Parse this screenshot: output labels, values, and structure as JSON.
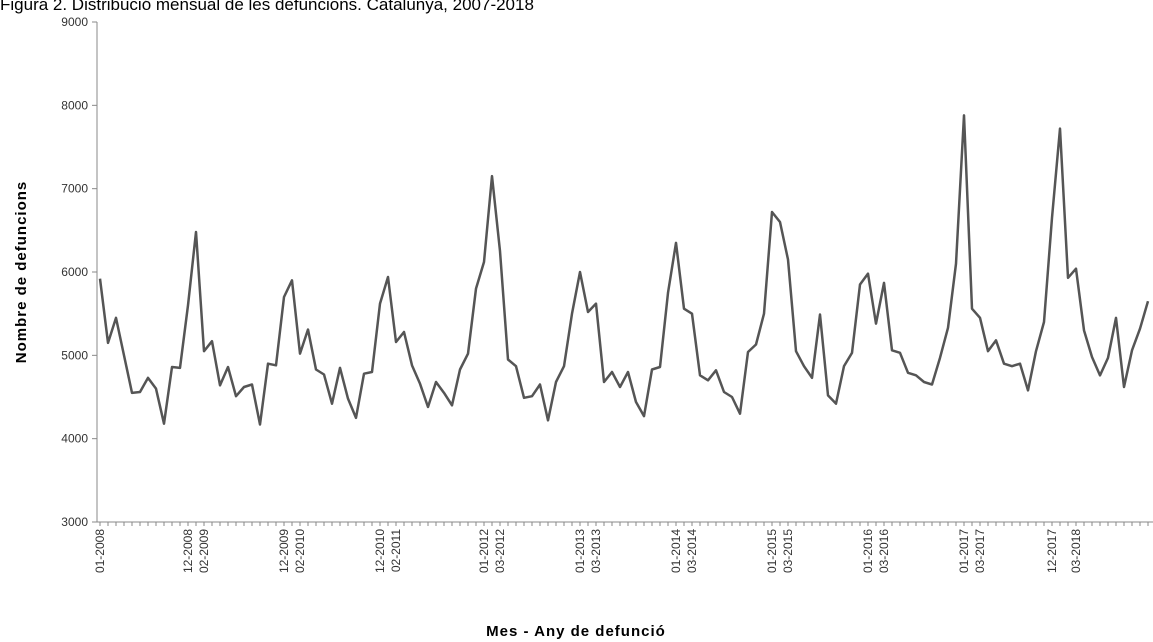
{
  "chart_data": {
    "type": "line",
    "title": "Figura 2. Distribució mensual de les defuncions. Catalunya, 2007-2018",
    "xlabel": "Mes - Any de defunció",
    "ylabel": "Nombre de defuncions",
    "categories": [
      "01-2008",
      null,
      null,
      null,
      null,
      null,
      null,
      null,
      null,
      null,
      null,
      "12-2008",
      null,
      "02-2009",
      null,
      null,
      null,
      null,
      null,
      null,
      null,
      null,
      null,
      "12-2009",
      null,
      "02-2010",
      null,
      null,
      null,
      null,
      null,
      null,
      null,
      null,
      null,
      "12-2010",
      null,
      "02-2011",
      null,
      null,
      null,
      null,
      null,
      null,
      null,
      null,
      null,
      null,
      "01-2012",
      null,
      "03-2012",
      null,
      null,
      null,
      null,
      null,
      null,
      null,
      null,
      null,
      "01-2013",
      null,
      "03-2013",
      null,
      null,
      null,
      null,
      null,
      null,
      null,
      null,
      null,
      "01-2014",
      null,
      "03-2014",
      null,
      null,
      null,
      null,
      null,
      null,
      null,
      null,
      null,
      "01-2015",
      null,
      "03-2015",
      null,
      null,
      null,
      null,
      null,
      null,
      null,
      null,
      null,
      "01-2016",
      null,
      "03-2016",
      null,
      null,
      null,
      null,
      null,
      null,
      null,
      null,
      null,
      "01-2017",
      null,
      "03-2017",
      null,
      null,
      null,
      null,
      null,
      null,
      null,
      null,
      "12-2017",
      null,
      null,
      "03-2018",
      null,
      null,
      null,
      null,
      null,
      null,
      null,
      null,
      null
    ],
    "series": [
      {
        "name": "Defuncions",
        "color": "#555555",
        "values": [
          5920,
          5150,
          5450,
          5000,
          4550,
          4560,
          4730,
          4600,
          4180,
          4860,
          4850,
          5600,
          6480,
          5050,
          5170,
          4640,
          4860,
          4510,
          4620,
          4650,
          4170,
          4900,
          4880,
          5700,
          5900,
          5020,
          5310,
          4830,
          4770,
          4420,
          4850,
          4480,
          4250,
          4780,
          4800,
          5620,
          5940,
          5160,
          5280,
          4880,
          4660,
          4380,
          4680,
          4550,
          4400,
          4830,
          5020,
          5800,
          6120,
          7150,
          6250,
          4950,
          4870,
          4490,
          4510,
          4650,
          4220,
          4680,
          4870,
          5500,
          6000,
          5520,
          5620,
          4680,
          4800,
          4620,
          4800,
          4440,
          4270,
          4830,
          4860,
          5750,
          6350,
          5560,
          5500,
          4760,
          4700,
          4820,
          4560,
          4500,
          4300,
          5040,
          5130,
          5500,
          6720,
          6600,
          6150,
          5050,
          4870,
          4730,
          5490,
          4520,
          4420,
          4870,
          5030,
          5850,
          5980,
          5380,
          5870,
          5060,
          5030,
          4790,
          4760,
          4680,
          4650,
          4970,
          5330,
          6100,
          7880,
          5560,
          5450,
          5050,
          5180,
          4900,
          4870,
          4900,
          4580,
          5050,
          5400,
          6650,
          7720,
          5930,
          6040,
          5300,
          4980,
          4760,
          4970,
          5450,
          4620,
          5060,
          5320,
          5650
        ]
      }
    ],
    "ylim": [
      3000,
      9000
    ],
    "yticks": [
      3000,
      4000,
      5000,
      6000,
      7000,
      8000,
      9000
    ]
  }
}
